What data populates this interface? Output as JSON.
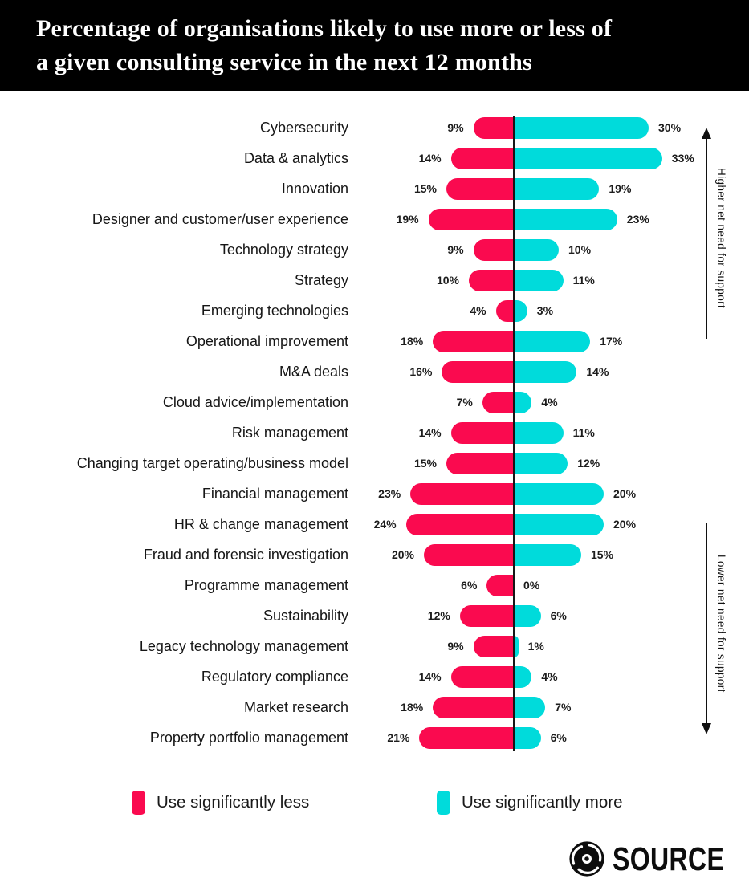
{
  "header": {
    "title_line1": "Percentage of organisations likely to use more or less of",
    "title_line2": "a given consulting service in the next 12 months",
    "bg_color": "#000000",
    "text_color": "#ffffff"
  },
  "chart_data": {
    "type": "bar",
    "orientation": "horizontal-diverging",
    "title": "Percentage of organisations likely to use more or less of a given consulting service in the next 12 months",
    "categories": [
      "Cybersecurity",
      "Data & analytics",
      "Innovation",
      "Designer and customer/user experience",
      "Technology strategy",
      "Strategy",
      "Emerging technologies",
      "Operational improvement",
      "M&A deals",
      "Cloud advice/implementation",
      "Risk management",
      "Changing target operating/business model",
      "Financial management",
      "HR & change management",
      "Fraud and forensic investigation",
      "Programme management",
      "Sustainability",
      "Legacy technology management",
      "Regulatory compliance",
      "Market research",
      "Property portfolio management"
    ],
    "series": [
      {
        "name": "Use significantly less",
        "direction": "left",
        "color": "#FA0A4F",
        "values": [
          9,
          14,
          15,
          19,
          9,
          10,
          4,
          18,
          16,
          7,
          14,
          15,
          23,
          24,
          20,
          6,
          12,
          9,
          14,
          18,
          21
        ]
      },
      {
        "name": "Use significantly more",
        "direction": "right",
        "color": "#00DBDB",
        "values": [
          30,
          33,
          19,
          23,
          10,
          11,
          3,
          17,
          14,
          4,
          11,
          12,
          20,
          20,
          15,
          0,
          6,
          1,
          4,
          7,
          6
        ]
      }
    ],
    "value_suffix": "%",
    "axis": {
      "zero_line_color": "#161616"
    },
    "annotations": {
      "top": "Higher net need for support",
      "bottom": "Lower net need for support"
    },
    "xlim_percent": [
      -24,
      33
    ],
    "legend_position": "bottom"
  },
  "footer": {
    "logo_text": "SOURCE"
  }
}
